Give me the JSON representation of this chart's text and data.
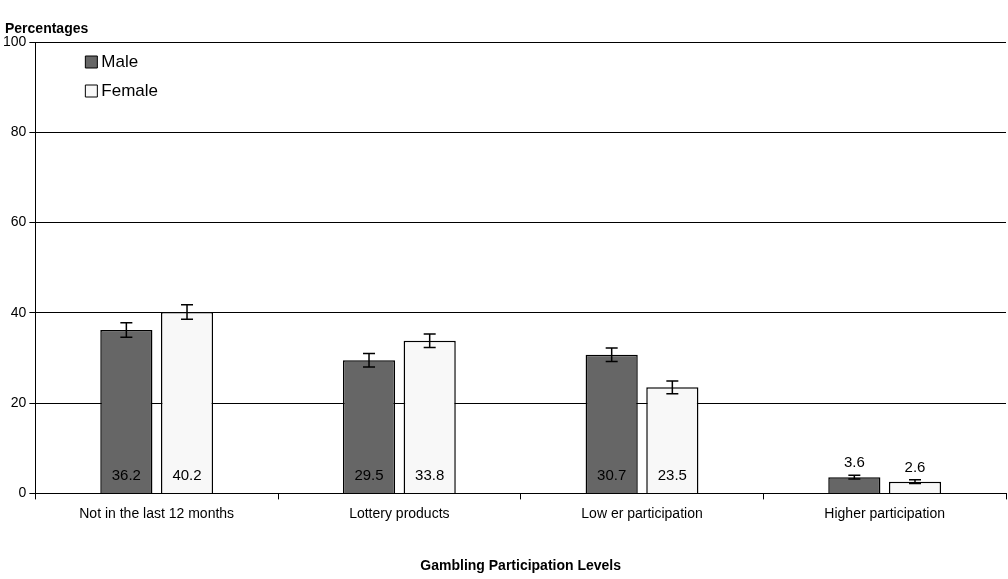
{
  "chart_data": {
    "type": "bar",
    "xlabel": "Gambling Participation Levels",
    "ylabel": "Percentages",
    "categories": [
      "Not in the last 12 months",
      "Lottery products",
      "Low er participation",
      "Higher participation"
    ],
    "series": [
      {
        "name": "Male",
        "color": "#666666",
        "values": [
          36.2,
          29.5,
          30.7,
          3.6
        ],
        "errors": [
          1.6,
          1.5,
          1.5,
          0.4
        ]
      },
      {
        "name": "Female",
        "color": "#f8f8f8",
        "values": [
          40.2,
          33.8,
          23.5,
          2.6
        ],
        "errors": [
          1.6,
          1.5,
          1.4,
          0.4
        ]
      }
    ],
    "ylim": [
      0,
      100
    ],
    "yticks": [
      0,
      20,
      40,
      60,
      80,
      100
    ],
    "grid": "y",
    "legend": "top left",
    "data_labels": true
  }
}
